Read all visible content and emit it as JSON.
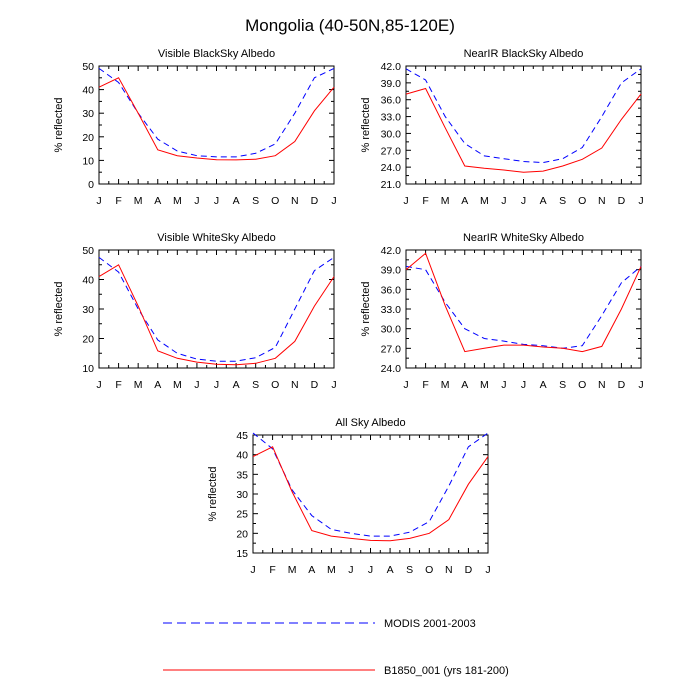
{
  "figure": {
    "title": "Mongolia (40-50N,85-120E)"
  },
  "legend": {
    "items": [
      {
        "label": "MODIS 2001-2003",
        "color": "#0000ff",
        "style": "dashed"
      },
      {
        "label": "B1850_001 (yrs 181-200)",
        "color": "#ff0000",
        "style": "solid"
      }
    ]
  },
  "chart_data": [
    {
      "type": "line",
      "title": "Visible BlackSky Albedo",
      "ylabel": "% reflected",
      "categories": [
        "J",
        "F",
        "M",
        "A",
        "M",
        "J",
        "J",
        "A",
        "S",
        "O",
        "N",
        "D",
        "J"
      ],
      "ylim": [
        0,
        50
      ],
      "yticks": [
        0,
        10,
        20,
        30,
        40,
        50
      ],
      "ytick_labels": [
        "0",
        "10",
        "20",
        "30",
        "40",
        "50"
      ],
      "series": [
        {
          "name": "MODIS 2001-2003",
          "color": "#0000ff",
          "dash": true,
          "values": [
            49,
            43,
            30,
            19,
            14,
            12,
            11.5,
            11.5,
            13,
            17,
            30,
            45,
            49
          ]
        },
        {
          "name": "B1850_001 (yrs 181-200)",
          "color": "#ff0000",
          "dash": false,
          "values": [
            41,
            45,
            30,
            14.5,
            12,
            11,
            10.3,
            10.2,
            10.5,
            12,
            18,
            31,
            41
          ]
        }
      ]
    },
    {
      "type": "line",
      "title": "NearIR BlackSky Albedo",
      "ylabel": "% reflected",
      "categories": [
        "J",
        "F",
        "M",
        "A",
        "M",
        "J",
        "J",
        "A",
        "S",
        "O",
        "N",
        "D",
        "J"
      ],
      "ylim": [
        21,
        42
      ],
      "yticks": [
        21,
        24,
        27,
        30,
        33,
        36,
        39,
        42
      ],
      "ytick_labels": [
        "21.0",
        "24.0",
        "27.0",
        "30.0",
        "33.0",
        "36.0",
        "39.0",
        "42.0"
      ],
      "series": [
        {
          "name": "MODIS 2001-2003",
          "color": "#0000ff",
          "dash": true,
          "values": [
            41.5,
            39.5,
            33,
            28.2,
            26,
            25.5,
            25,
            24.8,
            25.5,
            27.5,
            33,
            39,
            41.5
          ]
        },
        {
          "name": "B1850_001 (yrs 181-200)",
          "color": "#ff0000",
          "dash": false,
          "values": [
            37,
            38,
            31,
            24.2,
            23.8,
            23.5,
            23.1,
            23.3,
            24.2,
            25.4,
            27.4,
            32.5,
            37
          ]
        }
      ]
    },
    {
      "type": "line",
      "title": "Visible WhiteSky Albedo",
      "ylabel": "% reflected",
      "categories": [
        "J",
        "F",
        "M",
        "A",
        "M",
        "J",
        "J",
        "A",
        "S",
        "O",
        "N",
        "D",
        "J"
      ],
      "ylim": [
        10,
        50
      ],
      "yticks": [
        10,
        20,
        30,
        40,
        50
      ],
      "ytick_labels": [
        "10",
        "20",
        "30",
        "40",
        "50"
      ],
      "series": [
        {
          "name": "MODIS 2001-2003",
          "color": "#0000ff",
          "dash": true,
          "values": [
            47.5,
            42.5,
            30,
            19.5,
            15,
            13,
            12.3,
            12.3,
            13.5,
            17,
            30,
            43,
            47.5
          ]
        },
        {
          "name": "B1850_001 (yrs 181-200)",
          "color": "#ff0000",
          "dash": false,
          "values": [
            41,
            45,
            31,
            15.8,
            13.3,
            12,
            11.3,
            11.1,
            11.6,
            13.3,
            19,
            31,
            41
          ]
        }
      ]
    },
    {
      "type": "line",
      "title": "NearIR WhiteSky Albedo",
      "ylabel": "% reflected",
      "categories": [
        "J",
        "F",
        "M",
        "A",
        "M",
        "J",
        "J",
        "A",
        "S",
        "O",
        "N",
        "D",
        "J"
      ],
      "ylim": [
        24,
        42
      ],
      "yticks": [
        24,
        27,
        30,
        33,
        36,
        39,
        42
      ],
      "ytick_labels": [
        "24.0",
        "27.0",
        "30.0",
        "33.0",
        "36.0",
        "39.0",
        "42.0"
      ],
      "series": [
        {
          "name": "MODIS 2001-2003",
          "color": "#0000ff",
          "dash": true,
          "values": [
            39.5,
            39,
            34,
            30,
            28.5,
            28.1,
            27.6,
            27.4,
            27,
            27.4,
            32,
            37,
            39.5
          ]
        },
        {
          "name": "B1850_001 (yrs 181-200)",
          "color": "#ff0000",
          "dash": false,
          "values": [
            39,
            41.5,
            33.5,
            26.5,
            27,
            27.5,
            27.5,
            27.2,
            27,
            26.5,
            27.3,
            33,
            39.5
          ]
        }
      ]
    },
    {
      "type": "line",
      "title": "All Sky Albedo",
      "ylabel": "% reflected",
      "categories": [
        "J",
        "F",
        "M",
        "A",
        "M",
        "J",
        "J",
        "A",
        "S",
        "O",
        "N",
        "D",
        "J"
      ],
      "ylim": [
        15,
        45
      ],
      "yticks": [
        15,
        20,
        25,
        30,
        35,
        40,
        45
      ],
      "ytick_labels": [
        "15",
        "20",
        "25",
        "30",
        "35",
        "40",
        "45"
      ],
      "series": [
        {
          "name": "MODIS 2001-2003",
          "color": "#0000ff",
          "dash": true,
          "values": [
            45.5,
            41.5,
            31,
            24.5,
            21,
            20,
            19.3,
            19.3,
            20.3,
            23,
            32,
            42,
            45.5
          ]
        },
        {
          "name": "B1850_001 (yrs 181-200)",
          "color": "#ff0000",
          "dash": false,
          "values": [
            39.5,
            42,
            30.5,
            20.7,
            19.3,
            18.7,
            18.2,
            18.1,
            18.7,
            20,
            23.5,
            32.5,
            39.5
          ]
        }
      ]
    }
  ]
}
